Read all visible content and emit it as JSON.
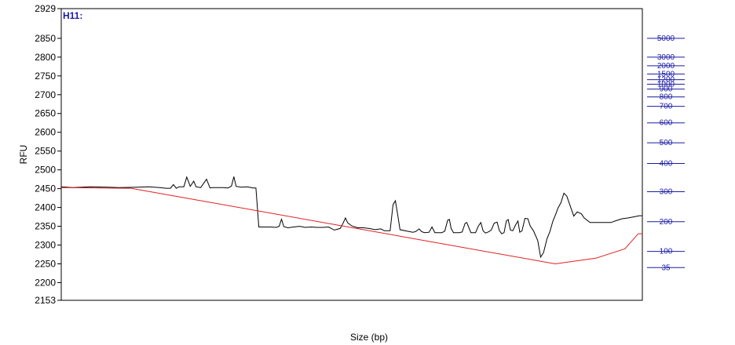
{
  "chart_data": {
    "type": "line",
    "sample_label": "H11:",
    "xlabel": "Size (bp)",
    "ylabel": "RFU",
    "ylim": [
      2153,
      2929
    ],
    "ytick_values": [
      2153,
      2200,
      2250,
      2300,
      2350,
      2400,
      2450,
      2500,
      2550,
      2600,
      2650,
      2700,
      2750,
      2800,
      2850,
      2929
    ],
    "ytick_labels": [
      "2153",
      "2200",
      "2250",
      "2300",
      "2350",
      "2400",
      "2450",
      "2500",
      "2550",
      "2600",
      "2650",
      "2700",
      "2750",
      "2800",
      "2850",
      "2929"
    ],
    "size_ladder_labels": [
      "5000",
      "3000",
      "2000",
      "1500",
      "1200",
      "1000",
      "900",
      "800",
      "700",
      "600",
      "500",
      "400",
      "300",
      "200",
      "100",
      "35"
    ],
    "size_ladder_rfu": [
      2850,
      2800,
      2777,
      2755,
      2740,
      2728,
      2715,
      2694,
      2669,
      2625,
      2572,
      2517,
      2442,
      2362,
      2283,
      2240
    ],
    "xlim": [
      0,
      100
    ],
    "series": [
      {
        "color": "#000000",
        "points": [
          [
            0,
            2455
          ],
          [
            2,
            2453
          ],
          [
            5,
            2455
          ],
          [
            8,
            2454
          ],
          [
            10,
            2453
          ],
          [
            13,
            2454
          ],
          [
            15,
            2455
          ],
          [
            17,
            2453
          ],
          [
            18,
            2451
          ],
          [
            18.8,
            2451
          ],
          [
            19.3,
            2461
          ],
          [
            19.8,
            2451
          ],
          [
            20.3,
            2455
          ],
          [
            21.1,
            2455
          ],
          [
            21.6,
            2481
          ],
          [
            22.2,
            2456
          ],
          [
            22.8,
            2470
          ],
          [
            23.2,
            2455
          ],
          [
            24.0,
            2453
          ],
          [
            25.0,
            2475
          ],
          [
            25.6,
            2452
          ],
          [
            26.0,
            2453
          ],
          [
            27.8,
            2453
          ],
          [
            28.7,
            2452
          ],
          [
            29.3,
            2457
          ],
          [
            29.7,
            2482
          ],
          [
            30.1,
            2456
          ],
          [
            31,
            2454
          ],
          [
            32,
            2455
          ],
          [
            33,
            2452
          ],
          [
            33.5,
            2452
          ],
          [
            34.0,
            2348
          ],
          [
            35,
            2348
          ],
          [
            36,
            2348
          ],
          [
            37,
            2347
          ],
          [
            37.5,
            2350
          ],
          [
            37.9,
            2369
          ],
          [
            38.3,
            2349
          ],
          [
            39,
            2346
          ],
          [
            40,
            2348
          ],
          [
            41,
            2350
          ],
          [
            42,
            2347
          ],
          [
            43,
            2348
          ],
          [
            44,
            2347
          ],
          [
            45,
            2347
          ],
          [
            46,
            2348
          ],
          [
            47,
            2340
          ],
          [
            48,
            2344
          ],
          [
            48.5,
            2358
          ],
          [
            48.9,
            2372
          ],
          [
            49.3,
            2359
          ],
          [
            50,
            2351
          ],
          [
            51,
            2346
          ],
          [
            52,
            2346
          ],
          [
            53,
            2344
          ],
          [
            54,
            2341
          ],
          [
            55,
            2343
          ],
          [
            55.6,
            2338
          ],
          [
            56.6,
            2338
          ],
          [
            57.1,
            2407
          ],
          [
            57.5,
            2418
          ],
          [
            57.9,
            2380
          ],
          [
            58.3,
            2341
          ],
          [
            59.5,
            2337
          ],
          [
            60.5,
            2334
          ],
          [
            61,
            2336
          ],
          [
            61.6,
            2343
          ],
          [
            62.0,
            2336
          ],
          [
            62.5,
            2333
          ],
          [
            63.3,
            2334
          ],
          [
            63.8,
            2348
          ],
          [
            64.3,
            2333
          ],
          [
            65.5,
            2333
          ],
          [
            66,
            2337
          ],
          [
            66.5,
            2366
          ],
          [
            66.8,
            2368
          ],
          [
            67.1,
            2344
          ],
          [
            67.5,
            2333
          ],
          [
            68.5,
            2333
          ],
          [
            69,
            2335
          ],
          [
            69.5,
            2358
          ],
          [
            69.8,
            2360
          ],
          [
            70.2,
            2344
          ],
          [
            70.5,
            2333
          ],
          [
            71.3,
            2333
          ],
          [
            71.8,
            2351
          ],
          [
            72.2,
            2360
          ],
          [
            72.6,
            2338
          ],
          [
            73,
            2332
          ],
          [
            73.5,
            2335
          ],
          [
            74,
            2340
          ],
          [
            74.5,
            2358
          ],
          [
            75,
            2361
          ],
          [
            75.4,
            2338
          ],
          [
            75.8,
            2330
          ],
          [
            76.2,
            2333
          ],
          [
            76.6,
            2364
          ],
          [
            76.9,
            2368
          ],
          [
            77.3,
            2340
          ],
          [
            77.7,
            2338
          ],
          [
            78.2,
            2354
          ],
          [
            78.6,
            2364
          ],
          [
            78.9,
            2334
          ],
          [
            79.3,
            2338
          ],
          [
            79.8,
            2371
          ],
          [
            80.3,
            2370
          ],
          [
            80.7,
            2351
          ],
          [
            81.3,
            2337
          ],
          [
            82,
            2312
          ],
          [
            82.5,
            2268
          ],
          [
            83,
            2280
          ],
          [
            83.6,
            2317
          ],
          [
            84.1,
            2336
          ],
          [
            84.6,
            2363
          ],
          [
            85.1,
            2382
          ],
          [
            85.5,
            2399
          ],
          [
            86.0,
            2413
          ],
          [
            86.5,
            2438
          ],
          [
            87.0,
            2430
          ],
          [
            87.4,
            2412
          ],
          [
            88.2,
            2377
          ],
          [
            88.8,
            2388
          ],
          [
            89.5,
            2383
          ],
          [
            90,
            2372
          ],
          [
            91,
            2360
          ],
          [
            92,
            2360
          ],
          [
            93.5,
            2360
          ],
          [
            94.6,
            2360
          ],
          [
            95.5,
            2365
          ],
          [
            96.5,
            2370
          ],
          [
            97.5,
            2372
          ],
          [
            98.5,
            2375
          ],
          [
            99.5,
            2378
          ],
          [
            100,
            2378
          ]
        ]
      },
      {
        "color": "#e02020",
        "points": [
          [
            0,
            2453
          ],
          [
            12,
            2451
          ],
          [
            85,
            2250
          ],
          [
            92,
            2265
          ],
          [
            97,
            2290
          ],
          [
            99.3,
            2330
          ],
          [
            100,
            2330
          ]
        ]
      }
    ],
    "grid": false
  }
}
